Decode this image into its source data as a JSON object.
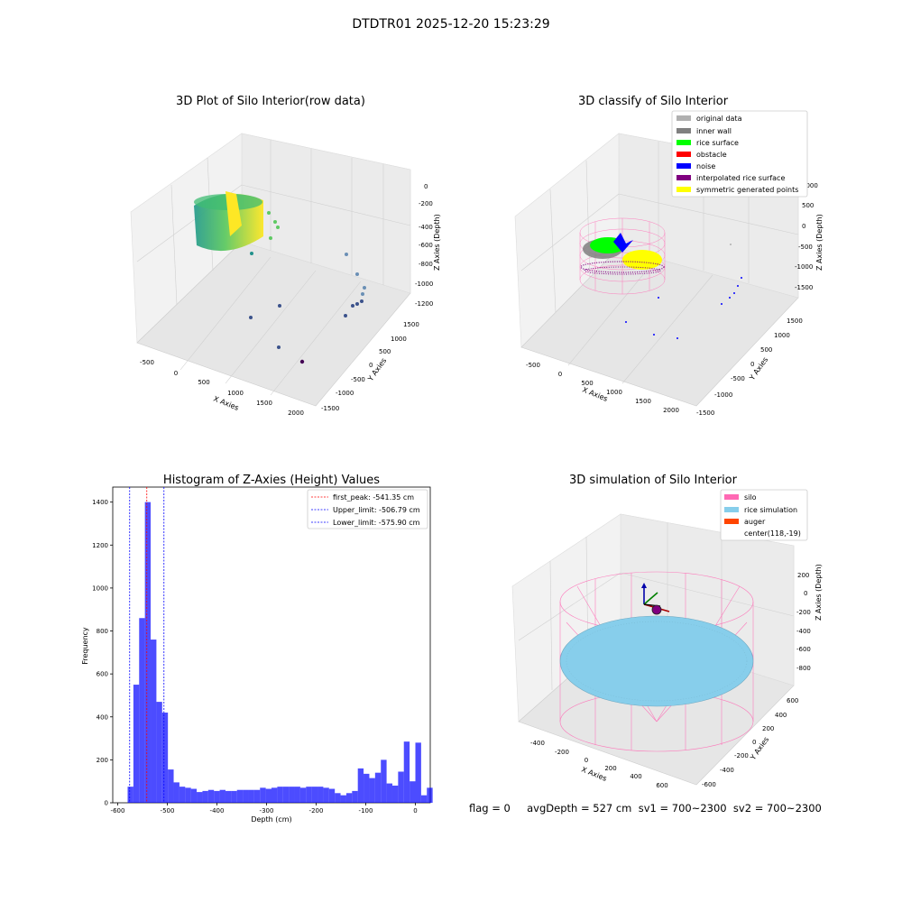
{
  "figure": {
    "suptitle": "DTDTR01 2025-12-20 15:23:29",
    "footer": "flag = 0     avgDepth = 527 cm  sv1 = 700~2300  sv2 = 700~2300"
  },
  "panels": {
    "raw": {
      "title": "3D Plot of Silo Interior(row data)",
      "xlabel": "X Axies",
      "ylabel": "Y Axies",
      "zlabel": "Z Axies (Depth)",
      "xticks": [
        "-500",
        "0",
        "500",
        "1000",
        "1500",
        "2000"
      ],
      "yticks": [
        "1500",
        "1000",
        "500",
        "0",
        "-500",
        "-1000",
        "-1500"
      ],
      "zticks": [
        "0",
        "-200",
        "-400",
        "-600",
        "-800",
        "-1000",
        "-1200"
      ]
    },
    "classify": {
      "title": "3D classify of Silo Interior",
      "xlabel": "X Axies",
      "ylabel": "Y Axies",
      "zlabel": "Z Axies (Depth)",
      "xticks": [
        "-500",
        "0",
        "500",
        "1000",
        "1500",
        "2000"
      ],
      "yticks": [
        "1500",
        "1000",
        "500",
        "0",
        "-500",
        "-1000",
        "-1500"
      ],
      "zticks": [
        "1000",
        "500",
        "0",
        "-500",
        "-1000",
        "-1500"
      ],
      "legend": [
        {
          "label": "original data",
          "color": "#b0b0b0"
        },
        {
          "label": "inner wall",
          "color": "#808080"
        },
        {
          "label": "rice surface",
          "color": "#00ff00"
        },
        {
          "label": "obstacle",
          "color": "#ff0000"
        },
        {
          "label": "noise",
          "color": "#0000ff"
        },
        {
          "label": "interpolated rice surface",
          "color": "#800080"
        },
        {
          "label": "symmetric generated points",
          "color": "#ffff00"
        }
      ]
    },
    "simulation": {
      "title": "3D simulation of Silo Interior",
      "xlabel": "X Axies",
      "ylabel": "Y Axies",
      "zlabel": "Z Axies (Depth)",
      "xticks": [
        "-400",
        "-200",
        "0",
        "200",
        "400",
        "600"
      ],
      "yticks": [
        "600",
        "400",
        "200",
        "0",
        "-200",
        "-400",
        "-600"
      ],
      "zticks": [
        "200",
        "0",
        "-200",
        "-400",
        "-600",
        "-800"
      ],
      "legend": [
        {
          "label": "silo",
          "color": "#ff69b4"
        },
        {
          "label": "rice simulation",
          "color": "#87ceeb"
        },
        {
          "label": "auger",
          "color": "#ff4500"
        },
        {
          "label": "center(118,-19)",
          "color": ""
        }
      ]
    }
  },
  "chart_data": [
    {
      "type": "histogram",
      "title": "Histogram of Z-Axies (Height) Values",
      "xlabel": "Depth (cm)",
      "ylabel": "Frequency",
      "xlim": [
        -610,
        30
      ],
      "ylim": [
        0,
        1470
      ],
      "xticks": [
        -600,
        -500,
        -400,
        -300,
        -200,
        -100,
        0
      ],
      "yticks": [
        0,
        200,
        400,
        600,
        800,
        1000,
        1200,
        1400
      ],
      "bar_color": "#0000ff",
      "bin_start": -580,
      "bin_width": 11.6,
      "counts": [
        75,
        550,
        860,
        1400,
        760,
        470,
        420,
        155,
        95,
        75,
        70,
        65,
        50,
        55,
        60,
        55,
        60,
        55,
        55,
        60,
        60,
        60,
        60,
        70,
        65,
        70,
        75,
        75,
        75,
        75,
        70,
        75,
        75,
        75,
        70,
        65,
        45,
        35,
        45,
        55,
        160,
        135,
        115,
        140,
        200,
        90,
        80,
        145,
        285,
        100,
        280,
        35,
        70
      ],
      "vlines": [
        {
          "x": -541.35,
          "label": "first_peak: -541.35 cm",
          "color": "#ff0000"
        },
        {
          "x": -506.79,
          "label": "Upper_limit: -506.79 cm",
          "color": "#0000ff"
        },
        {
          "x": -575.9,
          "label": "Lower_limit: -575.90 cm",
          "color": "#0000ff"
        }
      ],
      "legend_position": "top-right"
    }
  ]
}
